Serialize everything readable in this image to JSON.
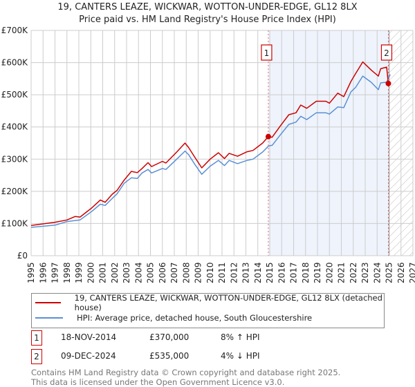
{
  "header": {
    "title": "19, CANTERS LEAZE, WICKWAR, WOTTON-UNDER-EDGE, GL12 8LX",
    "subtitle": "Price paid vs. HM Land Registry's House Price Index (HPI)"
  },
  "colors": {
    "property": "#cc0000",
    "hpi": "#5b8fd4",
    "shade": "#eef3fc",
    "grid": "#cccccc",
    "marker_line": "#ee6666"
  },
  "chart_data": {
    "type": "line",
    "title": "Price paid vs. HM Land Registry's House Price Index (HPI)",
    "xlabel": "",
    "ylabel": "",
    "xlim": [
      1995,
      2027
    ],
    "ylim": [
      0,
      700000
    ],
    "grid": true,
    "legend_placement": "below",
    "x_ticks": [
      "1995",
      "1996",
      "1997",
      "1998",
      "1999",
      "2000",
      "2001",
      "2002",
      "2003",
      "2004",
      "2005",
      "2006",
      "2007",
      "2008",
      "2009",
      "2010",
      "2011",
      "2012",
      "2013",
      "2014",
      "2015",
      "2016",
      "2017",
      "2018",
      "2019",
      "2020",
      "2021",
      "2022",
      "2023",
      "2024",
      "2025",
      "2026",
      "2027"
    ],
    "y_ticks": [
      {
        "value": 0,
        "label": "£0"
      },
      {
        "value": 100000,
        "label": "£100K"
      },
      {
        "value": 200000,
        "label": "£200K"
      },
      {
        "value": 300000,
        "label": "£300K"
      },
      {
        "value": 400000,
        "label": "£400K"
      },
      {
        "value": 500000,
        "label": "£500K"
      },
      {
        "value": 600000,
        "label": "£600K"
      },
      {
        "value": 700000,
        "label": "£700K"
      }
    ],
    "shaded_range": [
      2014.88,
      2024.94
    ],
    "hatched_range": [
      2025.0,
      2027.0
    ],
    "series": [
      {
        "name": "19, CANTERS LEAZE, WICKWAR, WOTTON-UNDER-EDGE, GL12 8LX (detached house)",
        "color": "#cc0000",
        "x": [
          1995.0,
          1997.0,
          1998.0,
          1998.7,
          1999.1,
          2000.1,
          2000.8,
          2001.2,
          2001.8,
          2002.2,
          2002.8,
          2003.4,
          2003.9,
          2004.3,
          2004.8,
          2005.1,
          2006.0,
          2006.3,
          2007.2,
          2007.9,
          2008.2,
          2008.7,
          2009.3,
          2010.0,
          2010.7,
          2011.2,
          2011.6,
          2012.3,
          2013.1,
          2013.6,
          2014.4,
          2014.88,
          2015.2,
          2015.9,
          2016.6,
          2017.2,
          2017.6,
          2018.1,
          2018.9,
          2019.7,
          2020.0,
          2020.7,
          2021.2,
          2021.8,
          2022.2,
          2022.8,
          2023.5,
          2024.1,
          2024.3,
          2024.8,
          2024.94
        ],
        "y": [
          94000,
          104000,
          111000,
          122000,
          120000,
          149000,
          173000,
          166000,
          191000,
          203000,
          235000,
          262000,
          258000,
          271000,
          289000,
          277000,
          293000,
          288000,
          322000,
          350000,
          336000,
          307000,
          273000,
          300000,
          320000,
          302000,
          318000,
          309000,
          323000,
          327000,
          350000,
          370000,
          368000,
          404000,
          438000,
          444000,
          468000,
          458000,
          480000,
          480000,
          474000,
          505000,
          494000,
          541000,
          566000,
          602000,
          577000,
          558000,
          581000,
          586000,
          535000
        ]
      },
      {
        "name": "HPI: Average price, detached house, South Gloucestershire",
        "color": "#5b8fd4",
        "x": [
          1995.0,
          1997.0,
          1998.0,
          1999.1,
          2000.1,
          2000.8,
          2001.2,
          2001.8,
          2002.2,
          2002.8,
          2003.4,
          2003.9,
          2004.3,
          2004.8,
          2005.1,
          2006.0,
          2006.3,
          2007.2,
          2007.9,
          2008.2,
          2008.7,
          2009.3,
          2010.0,
          2010.7,
          2011.2,
          2011.6,
          2012.3,
          2013.1,
          2013.6,
          2014.4,
          2014.9,
          2015.2,
          2015.9,
          2016.6,
          2017.2,
          2017.6,
          2018.1,
          2018.9,
          2019.7,
          2020.0,
          2020.7,
          2021.2,
          2021.8,
          2022.2,
          2022.8,
          2023.5,
          2024.1,
          2024.3,
          2024.8,
          2025.1
        ],
        "y": [
          88000,
          95000,
          106000,
          111000,
          138000,
          160000,
          156000,
          178000,
          192000,
          225000,
          242000,
          240000,
          257000,
          268000,
          257000,
          271000,
          268000,
          300000,
          325000,
          314000,
          285000,
          253000,
          278000,
          296000,
          280000,
          296000,
          286000,
          296000,
          300000,
          322000,
          341000,
          343000,
          376000,
          408000,
          415000,
          433000,
          423000,
          444000,
          444000,
          440000,
          462000,
          460000,
          509000,
          523000,
          558000,
          539000,
          516000,
          537000,
          539000,
          563000
        ]
      }
    ],
    "sales": [
      {
        "id": "1",
        "x": 2014.88,
        "y": 370000
      },
      {
        "id": "2",
        "x": 2024.94,
        "y": 535000
      }
    ]
  },
  "legend": {
    "property_label": "19, CANTERS LEAZE, WICKWAR, WOTTON-UNDER-EDGE, GL12 8LX (detached house)",
    "hpi_label": "HPI: Average price, detached house, South Gloucestershire"
  },
  "transactions": [
    {
      "id": "1",
      "date": "18-NOV-2014",
      "price": "£370,000",
      "hpi_change": "8% ↑ HPI"
    },
    {
      "id": "2",
      "date": "09-DEC-2024",
      "price": "£535,000",
      "hpi_change": "4% ↓ HPI"
    }
  ],
  "footer": {
    "line1": "Contains HM Land Registry data © Crown copyright and database right 2025.",
    "line2": "This data is licensed under the Open Government Licence v3.0."
  }
}
